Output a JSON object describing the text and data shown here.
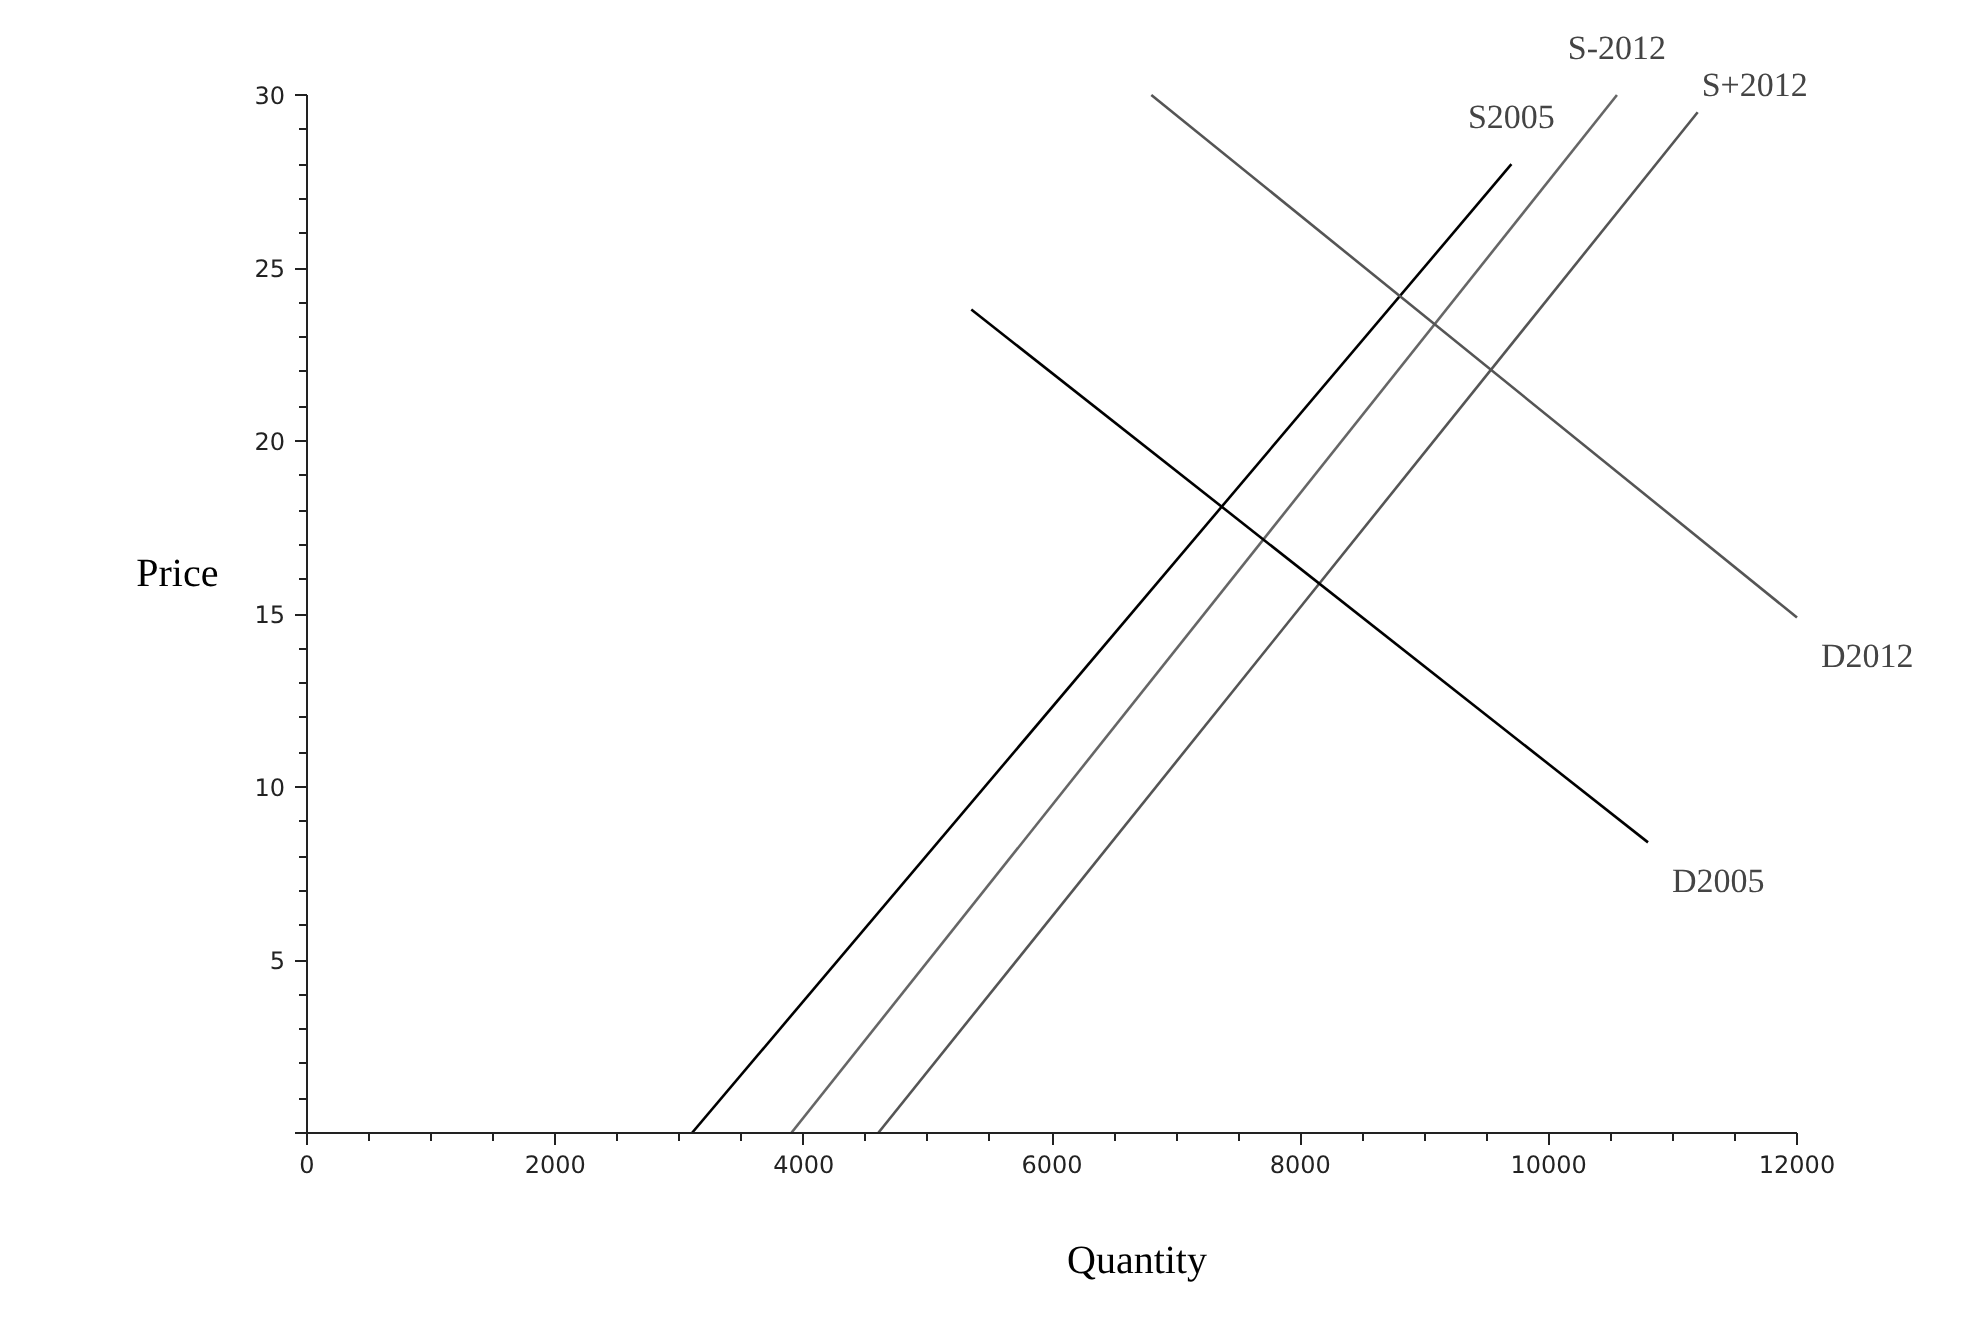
{
  "chart_data": {
    "type": "line",
    "xlabel": "Quantity",
    "ylabel": "Price",
    "xlim": [
      0,
      12000
    ],
    "ylim": [
      0,
      30
    ],
    "xticks": [
      0,
      2000,
      4000,
      6000,
      8000,
      10000,
      12000
    ],
    "yticks": [
      {
        "value": 0,
        "label": null
      },
      5,
      10,
      15,
      20,
      25,
      30
    ],
    "grid": false,
    "series": [
      {
        "name": "S2005",
        "color": "#000000",
        "x": [
          3100,
          9700
        ],
        "values": [
          0,
          28
        ]
      },
      {
        "name": "S-2012",
        "color": "#666666",
        "x": [
          3900,
          10550
        ],
        "values": [
          0,
          30
        ]
      },
      {
        "name": "S+2012",
        "color": "#555555",
        "x": [
          4600,
          11200
        ],
        "values": [
          0,
          29.5
        ]
      },
      {
        "name": "D2005",
        "color": "#000000",
        "x": [
          5350,
          10800
        ],
        "values": [
          23.8,
          8.4
        ]
      },
      {
        "name": "D2012",
        "color": "#555555",
        "x": [
          6800,
          12000
        ],
        "values": [
          30,
          14.9
        ]
      }
    ]
  }
}
